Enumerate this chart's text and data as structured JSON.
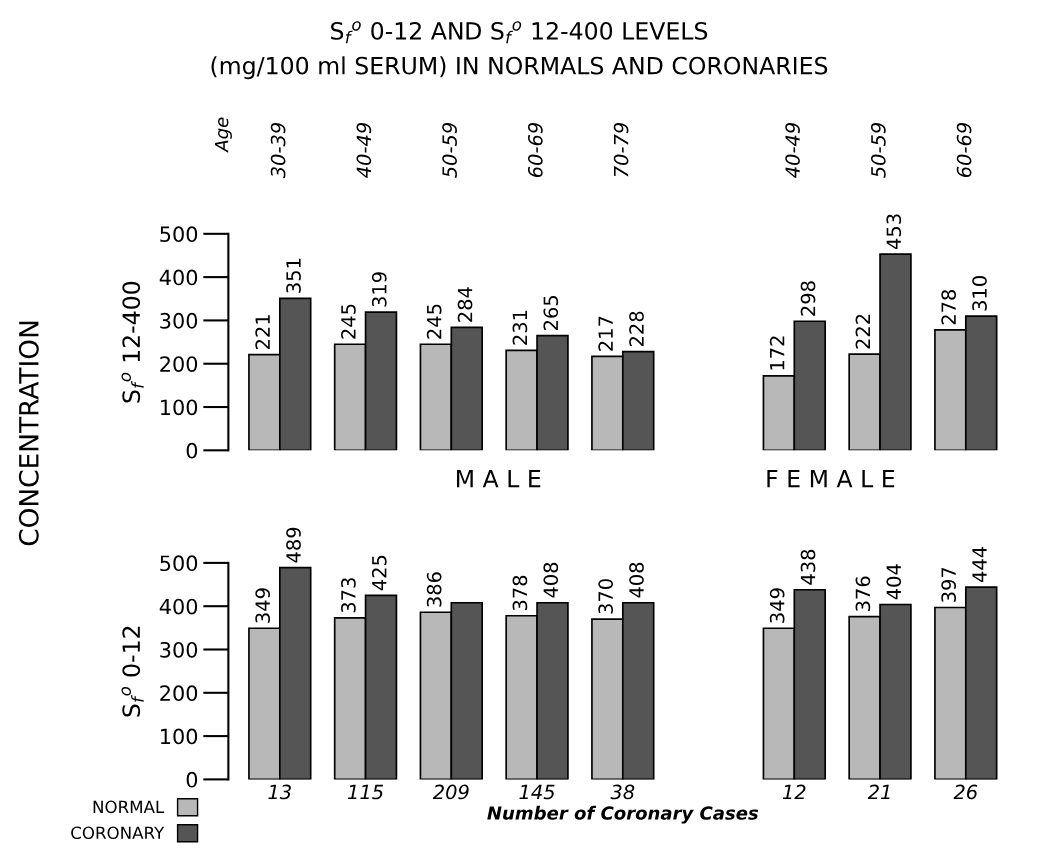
{
  "chart_data": [
    {
      "type": "bar",
      "title": "S$_{f}$$^{o}$ 0-12 AND S$_{f}$$^{o}$ 12-400 LEVELS",
      "subtitle": "(mg/100 ml SERUM) IN NORMALS AND CORONARIES",
      "ylabel": "S$_{f}$$^{o}$ 12-400",
      "categories": [
        "30-39",
        "40-49",
        "50-59",
        "60-69",
        "70-79",
        null,
        "40-49",
        "50-59",
        "60-69"
      ],
      "series": [
        {
          "color": "#b8b8b8",
          "values": [
            221,
            245,
            245,
            231,
            217,
            null,
            172,
            222,
            278
          ]
        },
        {
          "color": "#555555",
          "values": [
            351,
            319,
            284,
            265,
            228,
            null,
            298,
            453,
            310
          ]
        }
      ],
      "ylim": [
        0,
        500
      ],
      "yticks": [
        0,
        100,
        200,
        300,
        400,
        500
      ],
      "grid": false,
      "legend": false,
      "data_labels": true,
      "annotations": [
        "Age",
        "CONCENTRATION",
        "M A L E",
        "F E M A L E"
      ]
    },
    {
      "type": "bar",
      "ylabel": "S$_{f}$$^{o}$ 0-12",
      "xlabel": "Number of Coronary Cases",
      "categories": [
        "13",
        "115",
        "209",
        "145",
        "38",
        null,
        "12",
        "21",
        "26"
      ],
      "series": [
        {
          "name": "NORMAL",
          "color": "#b8b8b8",
          "values": [
            349,
            373,
            386,
            378,
            370,
            null,
            349,
            376,
            397
          ],
          "value_labels": [
            "349",
            "373",
            "386",
            "378",
            "370",
            null,
            "349",
            "376",
            "397"
          ]
        },
        {
          "name": "CORONARY",
          "color": "#555555",
          "values": [
            489,
            425,
            408,
            408,
            408,
            null,
            438,
            404,
            444
          ],
          "value_labels": [
            "489",
            "425",
            null,
            "408",
            "408",
            null,
            "438",
            "404",
            "444"
          ]
        }
      ],
      "ylim": [
        0,
        500
      ],
      "yticks": [
        0,
        100,
        200,
        300,
        400,
        500
      ],
      "grid": false,
      "legend": "bottom left"
    }
  ]
}
